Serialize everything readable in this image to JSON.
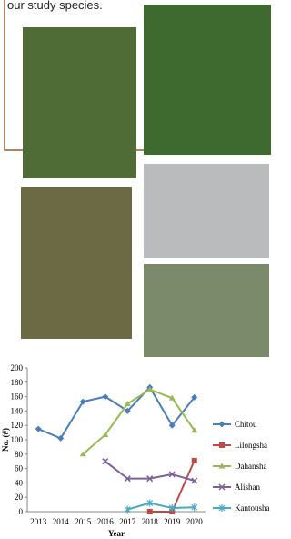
{
  "header": {
    "text": "our study species."
  },
  "chart_data": {
    "type": "line",
    "x_label": "Year",
    "y_label": "No. (#)",
    "categories": [
      "2013",
      "2014",
      "2015",
      "2016",
      "2017",
      "2018",
      "2019",
      "2020"
    ],
    "ylim": [
      0,
      200
    ],
    "yticks": [
      0,
      20,
      40,
      60,
      80,
      100,
      120,
      140,
      160,
      180,
      200
    ],
    "grid": false,
    "legend": "right",
    "series": [
      {
        "name": "Chitou",
        "color": "#4a7ebb",
        "marker": "diamond",
        "values": [
          115,
          102,
          153,
          160,
          140,
          173,
          120,
          159
        ]
      },
      {
        "name": "Lilongsha",
        "color": "#be4b48",
        "marker": "square",
        "values": [
          null,
          null,
          null,
          null,
          null,
          0,
          0,
          71
        ]
      },
      {
        "name": "Dahansha",
        "color": "#98b954",
        "marker": "triangle",
        "values": [
          null,
          null,
          80,
          107,
          150,
          170,
          158,
          113
        ]
      },
      {
        "name": "Alishan",
        "color": "#7d60a0",
        "marker": "x",
        "values": [
          null,
          null,
          null,
          70,
          46,
          46,
          52,
          43
        ]
      },
      {
        "name": "Kantousha",
        "color": "#46aac5",
        "marker": "star",
        "values": [
          null,
          null,
          null,
          null,
          3,
          12,
          5,
          6
        ]
      }
    ]
  }
}
